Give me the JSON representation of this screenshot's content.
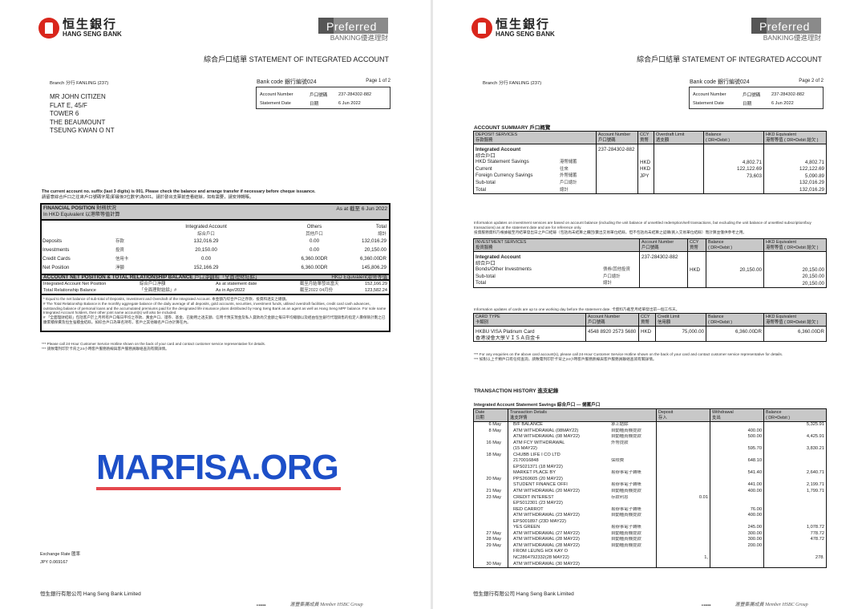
{
  "header": {
    "bank_name_zh": "恒生銀行",
    "bank_name_en": "HANG SENG BANK",
    "preferred": "Preferred",
    "preferred_sub": "BANKING優進理財",
    "title_zh": "綜合戶口結單",
    "title_en": "STATEMENT OF INTEGRATED ACCOUNT",
    "branch": "Branch 分行  FANLING (237)",
    "bank_code": "Bank code 銀行編號024",
    "account_number_label": "Account Number",
    "account_number_label_zh": "戶口號碼",
    "account_number": "237-284302-882",
    "statement_date_label": "Statement Date",
    "statement_date_label_zh": "日期",
    "statement_date": "6 Jun 2022"
  },
  "page1": {
    "page_no": "Page 1 of 2",
    "address": [
      "MR JOHN CITIZEN",
      "FLAT E, 45/F",
      "TOWER 6",
      "THE BEAUMOUNT",
      "TSEUNG KWAN O NT"
    ],
    "notice_en": "The current account no. suffix (last 3 digits) is 001.  Please check the balance and arrange transfer if necessary before cheque issuance.",
    "notice_zh": "請留意綜合戶口之往來戶口號碼字尾(即最後3位數字)為001。請於發出支票前查看結餘，如有需要，請安排轉賬。",
    "financial": {
      "title": "FINANCIAL POSITION",
      "title_zh": "財務狀況",
      "sub": "In HKD Equivalent",
      "sub_zh": "以港幣等值計算",
      "as_at": "As at 截至 6 Jun 2022",
      "col_integrated": "Integrated Account",
      "col_integrated_zh": "綜合戶口",
      "col_others": "Others",
      "col_others_zh": "其他戶口",
      "col_total": "Total",
      "col_total_zh": "總計",
      "rows": [
        {
          "label": "Deposits",
          "zh": "存款",
          "integrated": "132,016.29",
          "others": "0.00",
          "total": "132,016.29"
        },
        {
          "label": "Investments",
          "zh": "投資",
          "integrated": "20,150.00",
          "others": "0.00",
          "total": "20,150.00"
        },
        {
          "label": "Credit Cards",
          "zh": "信用卡",
          "integrated": "0.00",
          "others": "6,360.00DR",
          "total": "6,360.00DR"
        },
        {
          "label": "Net Position",
          "zh": "淨額",
          "integrated": "152,166.29",
          "others": "6,360.00DR",
          "total": "145,806.29"
        }
      ],
      "band_title": "ACCOUNT NET POSITION & TOTAL RELATIONSHIP BALANCE",
      "band_title_zh": "戶口淨額和「全面理財結餘」",
      "band_right": "HKD Equivalent港幣等值",
      "net_rows": [
        {
          "label": "Integrated Account Net Position",
          "zh": "綜合戶口淨額",
          "when": "As at statement date",
          "when_zh": "截至月結單發出當天",
          "value": "152,166.29"
        },
        {
          "label": "Total Relationship Balance",
          "zh": "「全面理財結餘」#",
          "when": "As in Apr/2022",
          "when_zh": "截至2022 04月份",
          "value": "123,582.24"
        }
      ],
      "notes": [
        "* Equal to the net balance of sub-total of Deposits, Investment and Overdraft of the Integrated Account. 本金額乃綜合戶口之存款、投資和透支之總額。",
        "# The Total Relationship Balance is the monthly aggregate balance of the daily average of all deposits, gold accounts, securities, investment funds, utilised overdraft facilities, credit card cash advances, outstanding balance of personal loans and the accumulated premiums paid for the designated life insurance plans distributed by Hang Seng Bank as an agent as well as Hang Seng MPF balance. For sole name Integrated Account holders, their other joint name account(s) will also be included.",
        "# 「全面理財結餘」包括客户於上月所有戶口每日平均之存款、黃金戶口、證券、基金、已動用之透支額、信用卡預支現金及私人貸款尚欠金額之每日平均總額以及經由恒生銀行代理銷售的指定人壽保險計劃之已繳累積保費及恒生強積金結餘。如綜合戶口為單名持有，客戶之其他聯名戶口亦計算在內。"
      ]
    },
    "footnote_en": "*** Please call 24-Hour Customer Service Hotline shown on the back of your card and contact customer service representative for details.",
    "footnote_zh": "*** 請致電列印於卡背之24小時客戶服務熱線與客戶服務員聯絡查詢有關詳情。",
    "exchange_label": "Exchange Rate 匯率",
    "exchange_rate": "JPY    0.069167"
  },
  "page2": {
    "page_no": "Page 2 of 2",
    "summary_title": "ACCOUNT SUMMARY   戶口概覽",
    "deposit": {
      "columns": [
        [
          "DEPOSIT SERVICES",
          "存款服務"
        ],
        [
          "Account Number",
          "戶口號碼"
        ],
        [
          "CCY",
          "貨幣"
        ],
        [
          "Overdraft Limit",
          "透支額"
        ],
        [
          "Balance",
          "( DR=Debit         )"
        ],
        [
          "HKD Equivalent",
          "港幣等值 ( DR=Debit 結欠 )"
        ]
      ],
      "rows": [
        [
          {
            "en": "Integrated Account",
            "bold": true
          },
          "237-284302-882",
          "",
          "",
          "",
          ""
        ],
        [
          {
            "en": "綜合戶口"
          },
          "",
          "",
          "",
          "",
          ""
        ],
        [
          {
            "en": "HKD Statement Savings",
            "zh": "港幣儲蓄"
          },
          "",
          "HKD",
          "",
          "4,802.71",
          "4,802.71"
        ],
        [
          {
            "en": "Current",
            "zh": "往來"
          },
          "",
          "HKD",
          "",
          "122,122.69",
          "122,122.69"
        ],
        [
          {
            "en": "Foreign Currency Savings",
            "zh": "外幣儲蓄"
          },
          "",
          "JPY",
          "",
          "73,603",
          "5,090.89"
        ],
        [
          {
            "en": "Sub-total",
            "zh": "戶口總計"
          },
          "",
          "",
          "",
          "",
          "132,016.29"
        ],
        [
          {
            "en": "Total",
            "zh": "總計"
          },
          "",
          "",
          "",
          "",
          "132,016.29"
        ]
      ]
    },
    "investment_info": "Information updates on investment services are based on account balance (including the unit balance of unsettled redemption/sell transactions, but excluding the unit balance of unsettled subscription/buy transactions) as at the statement date and are for reference only.",
    "investment_info_zh": "投資服務資料乃根據截至月結單發出日之戶口結餘（包括尚未結算之贖回/賣出交易單位結餘，但不包括尚未結算之認購/買入交易單位結餘）而計算並僅供參考之用。",
    "investment": {
      "columns": [
        [
          "INVESTMENT SERVICES",
          "投資服務"
        ],
        [
          "Account Number",
          "戶口號碼"
        ],
        [
          "CCY",
          "貨幣"
        ],
        [
          "Balance",
          "( DR=Debit         )"
        ],
        [
          "HKD Equivalent",
          "港幣等值 ( DR=Debit 結欠 )"
        ]
      ],
      "rows": [
        [
          {
            "en": "Integrated Account",
            "bold": true
          },
          "237-284302-882",
          "",
          "",
          ""
        ],
        [
          {
            "en": "綜合戶口"
          },
          "",
          "",
          "",
          ""
        ],
        [
          {
            "en": "Bonds/Other Investments",
            "zh": "債券/其他投資"
          },
          "",
          "HKD",
          "20,150.00",
          "20,150.00"
        ],
        [
          {
            "en": "Sub-total",
            "zh": "戶口總計"
          },
          "",
          "",
          "",
          "20,150.00"
        ],
        [
          {
            "en": "Total",
            "zh": "總計"
          },
          "",
          "",
          "",
          "20,150.00"
        ]
      ]
    },
    "card_info": "Information updates of cards are up to one working day before the statement date. 卡資料乃截至月結單發出前一個工作天。",
    "card": {
      "columns": [
        [
          "CARD TYPE",
          "卡類別"
        ],
        [
          "Account Number",
          "戶口號碼"
        ],
        [
          "CCY",
          "貨幣"
        ],
        [
          "Credit Limit",
          "信用額"
        ],
        [
          "Balance",
          "( DR=Debit         )"
        ],
        [
          "HKD Equivalent",
          "港幣等值 ( DR=Debit 結欠 )"
        ]
      ],
      "rows": [
        [
          {
            "en": "HKBU VISA Platinum Card"
          },
          "4548 8920 2573 5680",
          "HKD",
          "75,000.00",
          "6,360.00DR",
          "6,360.00DR"
        ],
        [
          {
            "en": "香港浸會大學ＶＩＳＡ白金卡"
          },
          "",
          "",
          "",
          "",
          ""
        ]
      ]
    },
    "card_footnote_en": "*** For any enquiries on the above card account(s), please call 24-Hour Customer Service Hotline shown on the back of your card and contact customer service representative for details.",
    "card_footnote_zh": "*** 如對以上卡類戶口有任何查詢，請致電列印於卡背之24小時客戶服務熱線與客戶服務員聯絡查詢有關詳情。",
    "history_title": "TRANSACTION HISTORY   進支紀錄",
    "history_sub": "Integrated Account Statement Savings 綜合戶口 — 儲蓄戶口",
    "tx_columns": [
      [
        "Date",
        "日期"
      ],
      [
        "Transaction Details",
        "進支詳情"
      ],
      [
        "Deposit",
        "存入"
      ],
      [
        "Withdrawal",
        "支出"
      ],
      [
        "Balance",
        "( DR=Debit       )"
      ]
    ],
    "transactions": [
      [
        "6 May",
        "B/F BALANCE",
        "承上結餘",
        "",
        "",
        "5,325.91"
      ],
      [
        "8 May",
        "ATM WITHDRAWAL (08MAY22)",
        "自動櫃員機提款",
        "",
        "400.00",
        ""
      ],
      [
        "",
        "ATM WITHDRAWAL (08 MAY22)",
        "自動櫃員機提款",
        "",
        "500.00",
        "4,425.91"
      ],
      [
        "16 May",
        "ATM FCY WITHDRAWAL",
        "外幣提款",
        "",
        "",
        ""
      ],
      [
        "",
        "(15 MAY22)",
        "",
        "",
        "595.70",
        "3,830.21"
      ],
      [
        "18 May",
        "CHUBB LIFE I CO LTD",
        "",
        "",
        "",
        ""
      ],
      [
        "",
        "2170016848",
        "保險費",
        "",
        "648.10",
        ""
      ],
      [
        "",
        "EPS021371 (18 MAY22)",
        "",
        "",
        "",
        ""
      ],
      [
        "",
        "MARKET PLACE BY",
        "易辦事電子轉賬",
        "",
        "541.40",
        "2,640.71"
      ],
      [
        "20 May",
        "PPS260605 (20 MAY22)",
        "",
        "",
        "",
        ""
      ],
      [
        "",
        "STUDENT FINANCE OFFI",
        "易辦事電子轉賬",
        "",
        "441.00",
        "2,199.71"
      ],
      [
        "21 May",
        "ATM WITHDRAWAL (20 MAY22)",
        "自動櫃員機提款",
        "",
        "400.00",
        "1,799.71"
      ],
      [
        "23 May",
        "CREDIT INTEREST",
        "存款利息",
        "0.01",
        "",
        ""
      ],
      [
        "",
        "EPS012301 (23 MAY22)",
        "",
        "",
        "",
        ""
      ],
      [
        "",
        "RED CARROT",
        "易辦事電子轉賬",
        "",
        "76.00",
        ""
      ],
      [
        "",
        "ATM WITHDRAWAL (23 MAY22)",
        "自動櫃員機提款",
        "",
        "400.00",
        ""
      ],
      [
        "",
        "EPS001897 (23D MAY22)",
        "",
        "",
        "",
        ""
      ],
      [
        "",
        "YES GREEN",
        "易辦事電子轉賬",
        "",
        "245.00",
        "1,078.72"
      ],
      [
        "27 May",
        "ATM WITHDRAWAL (27 MAY22)",
        "自動櫃員機提款",
        "",
        "300.00",
        "778.72"
      ],
      [
        "28 May",
        "ATM WITHDRAWAL (28 MAY22)",
        "自動櫃員機提款",
        "",
        "300.00",
        "478.72"
      ],
      [
        "29 May",
        "ATM WITHDRAWAL (28 MAY22)",
        "自動櫃員機提款",
        "",
        "200.00",
        ""
      ],
      [
        "",
        "FROM LEUNG HOI KAY O",
        "",
        "",
        "",
        ""
      ],
      [
        "",
        "NC2864792332(28 MAY22)",
        "",
        "1,",
        "",
        "278."
      ],
      [
        "30 May",
        "ATM WITHDRAWAL (30 MAY22)",
        "",
        "",
        "",
        ""
      ]
    ]
  },
  "footer": {
    "company": "恒生銀行有限公司 Hang Seng Bank Limited",
    "member": "滙豐集團成員  Member HSBC Group"
  },
  "watermark": "MARFISA.ORG",
  "colors": {
    "brand_red": "#d9261c",
    "watermark_blue": "#1d4fc8",
    "watermark_red": "#e5484d",
    "header_gray": "#c8c8c8"
  }
}
